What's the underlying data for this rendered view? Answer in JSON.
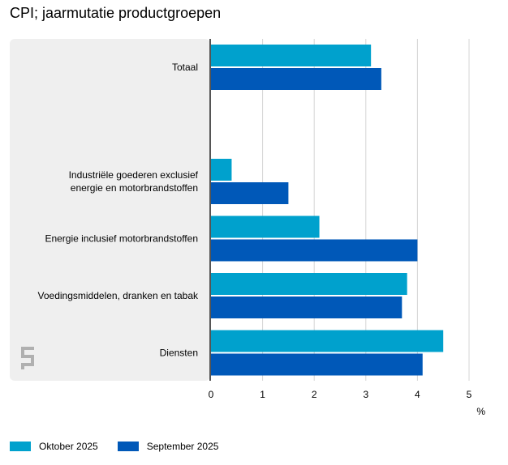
{
  "chart_data": {
    "type": "bar",
    "orientation": "horizontal",
    "title": "CPI; jaarmutatie productgroepen",
    "categories": [
      [
        "Totaal"
      ],
      [
        ""
      ],
      [
        "Industriële goederen exclusief",
        "energie en motorbrandstoffen"
      ],
      [
        "Energie inclusief motorbrandstoffen"
      ],
      [
        "Voedingsmiddelen, dranken en tabak"
      ],
      [
        "Diensten"
      ]
    ],
    "series": [
      {
        "name": "Oktober 2025",
        "color": "#00a1cd",
        "values": [
          3.1,
          null,
          0.4,
          2.1,
          3.8,
          4.5
        ]
      },
      {
        "name": "September 2025",
        "color": "#0058b8",
        "values": [
          3.3,
          null,
          1.5,
          4.0,
          3.7,
          4.1
        ]
      }
    ],
    "xlim": [
      0,
      5
    ],
    "xticks": [
      "0",
      "1",
      "2",
      "3",
      "4",
      "5"
    ],
    "xlabel": "%",
    "grid": true,
    "legend_position": "bottom-left",
    "label_area_color": "#efefef",
    "gridline_color": "#d4d4d4",
    "axis_color": "#555555",
    "watermark_logo_text": "cbs"
  }
}
